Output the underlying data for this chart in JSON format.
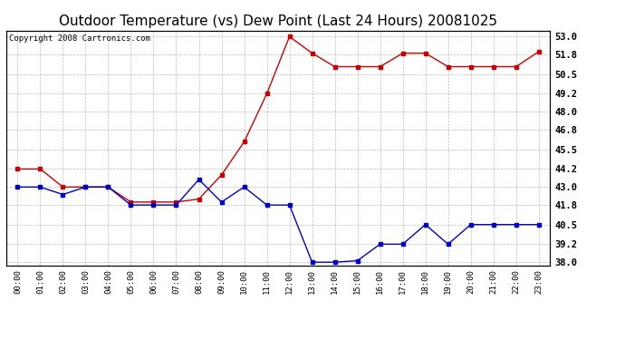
{
  "title": "Outdoor Temperature (vs) Dew Point (Last 24 Hours) 20081025",
  "copyright_text": "Copyright 2008 Cartronics.com",
  "hours": [
    "00:00",
    "01:00",
    "02:00",
    "03:00",
    "04:00",
    "05:00",
    "06:00",
    "07:00",
    "08:00",
    "09:00",
    "10:00",
    "11:00",
    "12:00",
    "13:00",
    "14:00",
    "15:00",
    "16:00",
    "17:00",
    "18:00",
    "19:00",
    "20:00",
    "21:00",
    "22:00",
    "23:00"
  ],
  "temp": [
    43.0,
    43.0,
    42.5,
    43.0,
    43.0,
    41.8,
    41.8,
    41.8,
    43.5,
    42.0,
    43.0,
    41.8,
    41.8,
    38.0,
    38.0,
    38.1,
    39.2,
    39.2,
    40.5,
    39.2,
    40.5,
    40.5,
    40.5,
    40.5
  ],
  "dew": [
    44.2,
    44.2,
    43.0,
    43.0,
    43.0,
    42.0,
    42.0,
    42.0,
    42.2,
    43.8,
    46.0,
    49.2,
    53.0,
    51.9,
    51.0,
    51.0,
    51.0,
    51.9,
    51.9,
    51.0,
    51.0,
    51.0,
    51.0,
    52.0
  ],
  "temp_color": "#0000cc",
  "dew_color": "#cc0000",
  "ylim_min": 37.8,
  "ylim_max": 53.4,
  "yticks": [
    38.0,
    39.2,
    40.5,
    41.8,
    43.0,
    44.2,
    45.5,
    46.8,
    48.0,
    49.2,
    50.5,
    51.8,
    53.0
  ],
  "background_color": "#ffffff",
  "plot_bg_color": "#ffffff",
  "grid_color": "#aaaaaa",
  "title_fontsize": 11,
  "copyright_fontsize": 6.5
}
